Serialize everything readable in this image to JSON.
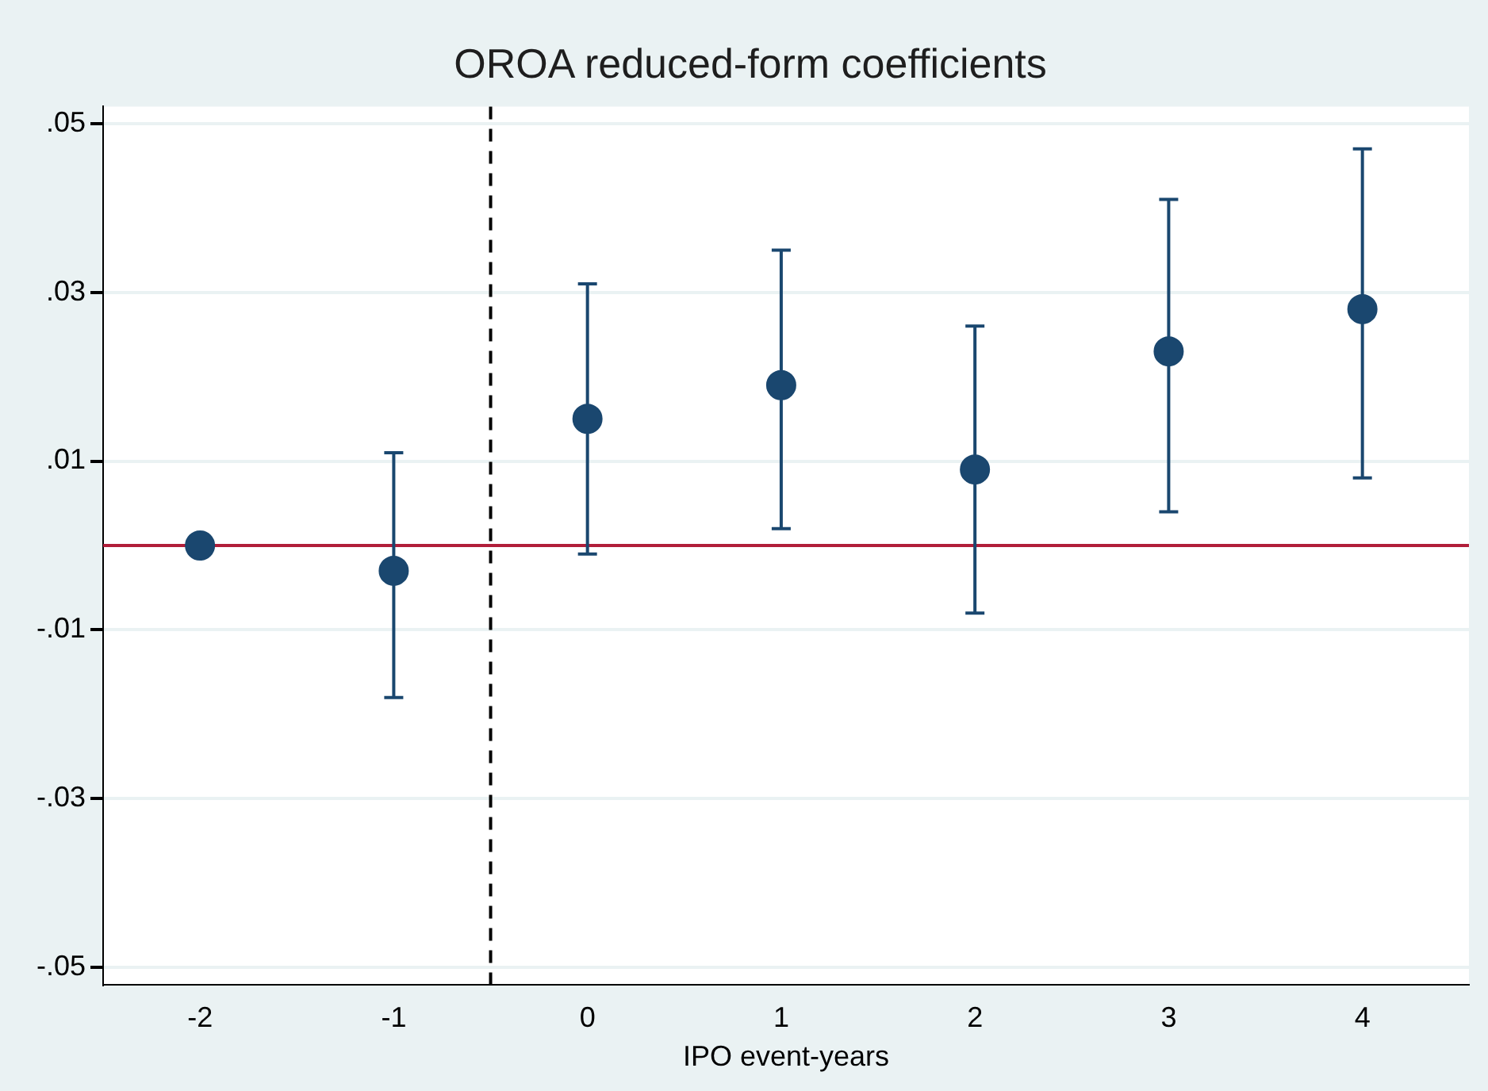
{
  "chart_data": {
    "type": "scatter",
    "title": "OROA reduced-form coefficients",
    "xlabel": "IPO event-years",
    "x": [
      -2,
      -1,
      0,
      1,
      2,
      3,
      4
    ],
    "series": [
      {
        "color": "#1a476f",
        "values": [
          0,
          -0.003,
          0.015,
          0.019,
          0.009,
          0.023,
          0.028
        ],
        "errors": [
          null,
          [
            -0.018,
            0.011
          ],
          [
            -0.001,
            0.031
          ],
          [
            0.002,
            0.035
          ],
          [
            -0.008,
            0.026
          ],
          [
            0.004,
            0.041
          ],
          [
            0.008,
            0.047
          ]
        ]
      }
    ],
    "xlim": [
      -2.5,
      4.55
    ],
    "xticks": [
      -2,
      -1,
      0,
      1,
      2,
      3,
      4
    ],
    "ylim": [
      -0.052,
      0.052
    ],
    "yticks": [
      {
        "value": -0.05,
        "label": "-.05"
      },
      {
        "value": -0.03,
        "label": "-.03"
      },
      {
        "value": -0.01,
        "label": "-.01"
      },
      {
        "value": 0.01,
        "label": ".01"
      },
      {
        "value": 0.03,
        "label": ".03"
      },
      {
        "value": 0.05,
        "label": ".05"
      }
    ],
    "ref_lines": [
      {
        "axis": "y",
        "value": 0,
        "color": "#b11e3a",
        "line_style": "solid"
      },
      {
        "axis": "x",
        "value": -0.5,
        "color": "#000000",
        "line_style": "dashed"
      }
    ],
    "grid": "y",
    "legend": false,
    "marker": "circle"
  }
}
